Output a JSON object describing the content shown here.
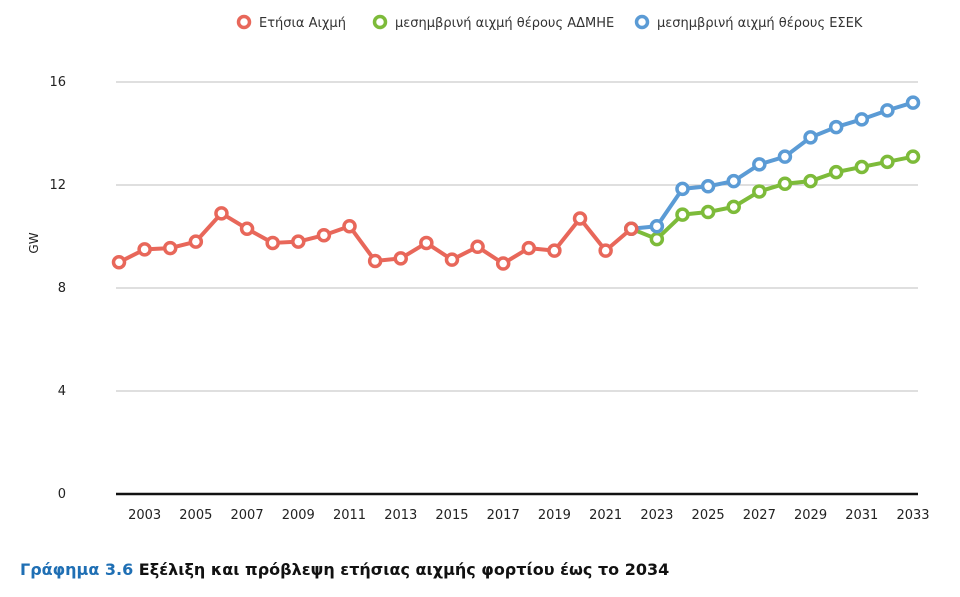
{
  "chart_data": {
    "type": "line",
    "ylabel": "GW",
    "ylim": [
      0,
      16
    ],
    "yticks": [
      "0",
      "4",
      "8",
      "12",
      "16"
    ],
    "x_tick_labels": [
      "2003",
      "2005",
      "2007",
      "2009",
      "2011",
      "2013",
      "2015",
      "2017",
      "2019",
      "2021",
      "2023",
      "2025",
      "2027",
      "2029",
      "2031",
      "2033"
    ],
    "grid": "horizontal",
    "legend_position": "top",
    "series": [
      {
        "name": "Ετήσια Αιχμή",
        "color": "#e8675a",
        "x": [
          2002,
          2003,
          2004,
          2005,
          2006,
          2007,
          2008,
          2009,
          2010,
          2011,
          2012,
          2013,
          2014,
          2015,
          2016,
          2017,
          2018,
          2019,
          2020,
          2021,
          2022
        ],
        "values": [
          9.0,
          9.5,
          9.55,
          9.8,
          10.9,
          10.3,
          9.75,
          9.8,
          10.05,
          10.4,
          9.05,
          9.15,
          9.75,
          9.1,
          9.6,
          8.95,
          9.55,
          9.45,
          10.7,
          9.45,
          10.3
        ]
      },
      {
        "name": "μεσημβρινή αιχμή θέρους ΑΔΜΗΕ",
        "color": "#7dbb3a",
        "x": [
          2022,
          2023,
          2024,
          2025,
          2026,
          2027,
          2028,
          2029,
          2030,
          2031,
          2032,
          2033
        ],
        "values": [
          10.3,
          9.9,
          10.85,
          10.95,
          11.15,
          11.75,
          12.05,
          12.15,
          12.5,
          12.7,
          12.9,
          13.1
        ]
      },
      {
        "name": "μεσημβρινή αιχμή θέρους ΕΣΕΚ",
        "color": "#5b9bd5",
        "x": [
          2022,
          2023,
          2024,
          2025,
          2026,
          2027,
          2028,
          2029,
          2030,
          2031,
          2032,
          2033
        ],
        "values": [
          10.3,
          10.4,
          11.85,
          11.95,
          12.15,
          12.8,
          13.1,
          13.85,
          14.25,
          14.55,
          14.9,
          15.2
        ]
      }
    ]
  },
  "caption": {
    "number": "Γράφημα 3.6",
    "text": " Εξέλιξη και πρόβλεψη ετήσιας αιχμής φορτίου έως το 2034"
  }
}
